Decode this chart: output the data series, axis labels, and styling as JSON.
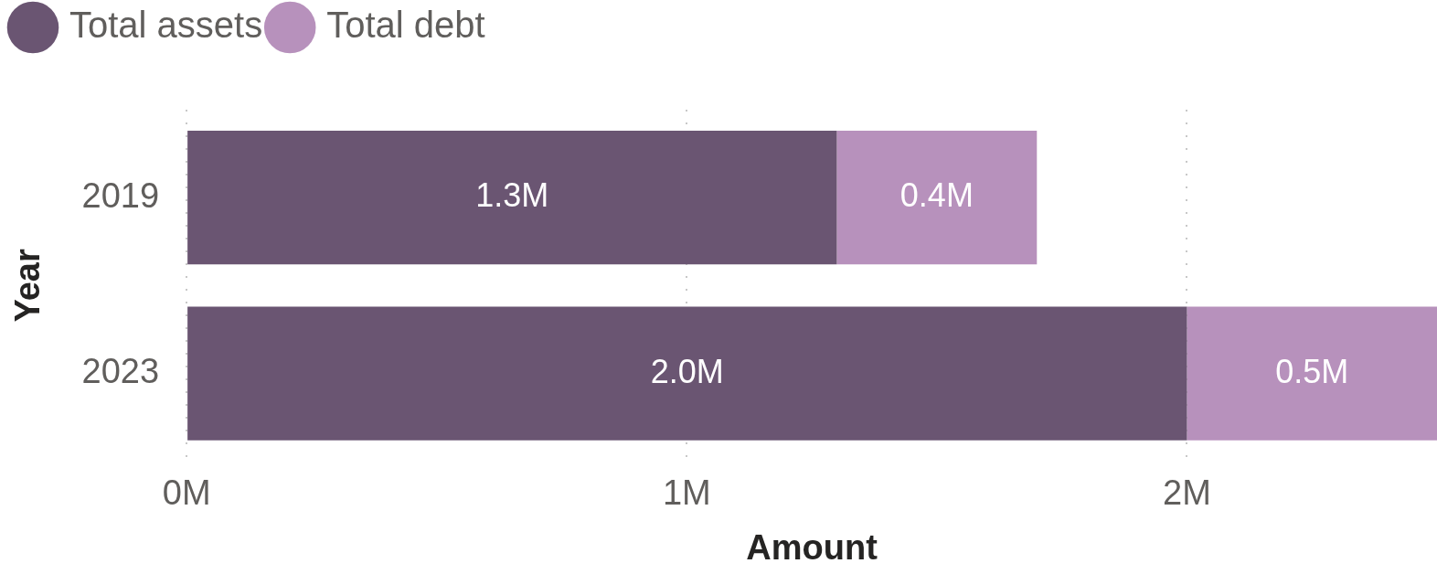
{
  "chart_data": {
    "type": "bar",
    "orientation": "horizontal",
    "stacked": true,
    "xlabel": "Amount",
    "ylabel": "Year",
    "categories": [
      "2019",
      "2023"
    ],
    "series": [
      {
        "name": "Total assets",
        "color": "#6a5572",
        "values": [
          1.3,
          2.0
        ],
        "value_labels": [
          "1.3M",
          "2.0M"
        ]
      },
      {
        "name": "Total debt",
        "color": "#b791bc",
        "values": [
          0.4,
          0.5
        ],
        "value_labels": [
          "0.4M",
          "0.5M"
        ]
      }
    ],
    "xlim": [
      0,
      2.5
    ],
    "xticks": [
      {
        "value": 0,
        "label": "0M"
      },
      {
        "value": 1,
        "label": "1M"
      },
      {
        "value": 2,
        "label": "2M"
      }
    ],
    "grid": "x",
    "legend": "top left"
  }
}
